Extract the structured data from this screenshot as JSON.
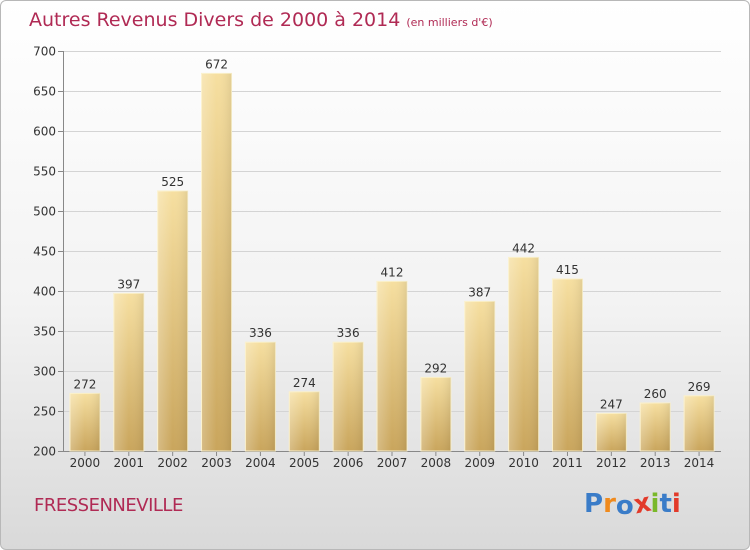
{
  "chart_data": {
    "type": "bar",
    "title": "Autres Revenus Divers de 2000 à 2014",
    "subtitle": "(en milliers d'€)",
    "categories": [
      "2000",
      "2001",
      "2002",
      "2003",
      "2004",
      "2005",
      "2006",
      "2007",
      "2008",
      "2009",
      "2010",
      "2011",
      "2012",
      "2013",
      "2014"
    ],
    "values": [
      272,
      397,
      525,
      672,
      336,
      274,
      336,
      412,
      292,
      387,
      442,
      415,
      247,
      260,
      269
    ],
    "ylim": [
      200,
      700
    ],
    "yticks": [
      200,
      250,
      300,
      350,
      400,
      450,
      500,
      550,
      600,
      650,
      700
    ],
    "grid": true,
    "bar_color": "#e8c878"
  },
  "footer": {
    "place": "FRESSENNEVILLE",
    "logo_letters": [
      "P",
      "r",
      "o",
      "x",
      "i",
      "t",
      "i"
    ]
  },
  "colors": {
    "title": "#b02a54",
    "logo": [
      "#3a7cc8",
      "#f08a1c",
      "#3a7cc8",
      "#e23a2a",
      "#7ab82a",
      "#3a7cc8",
      "#e23a2a"
    ]
  }
}
